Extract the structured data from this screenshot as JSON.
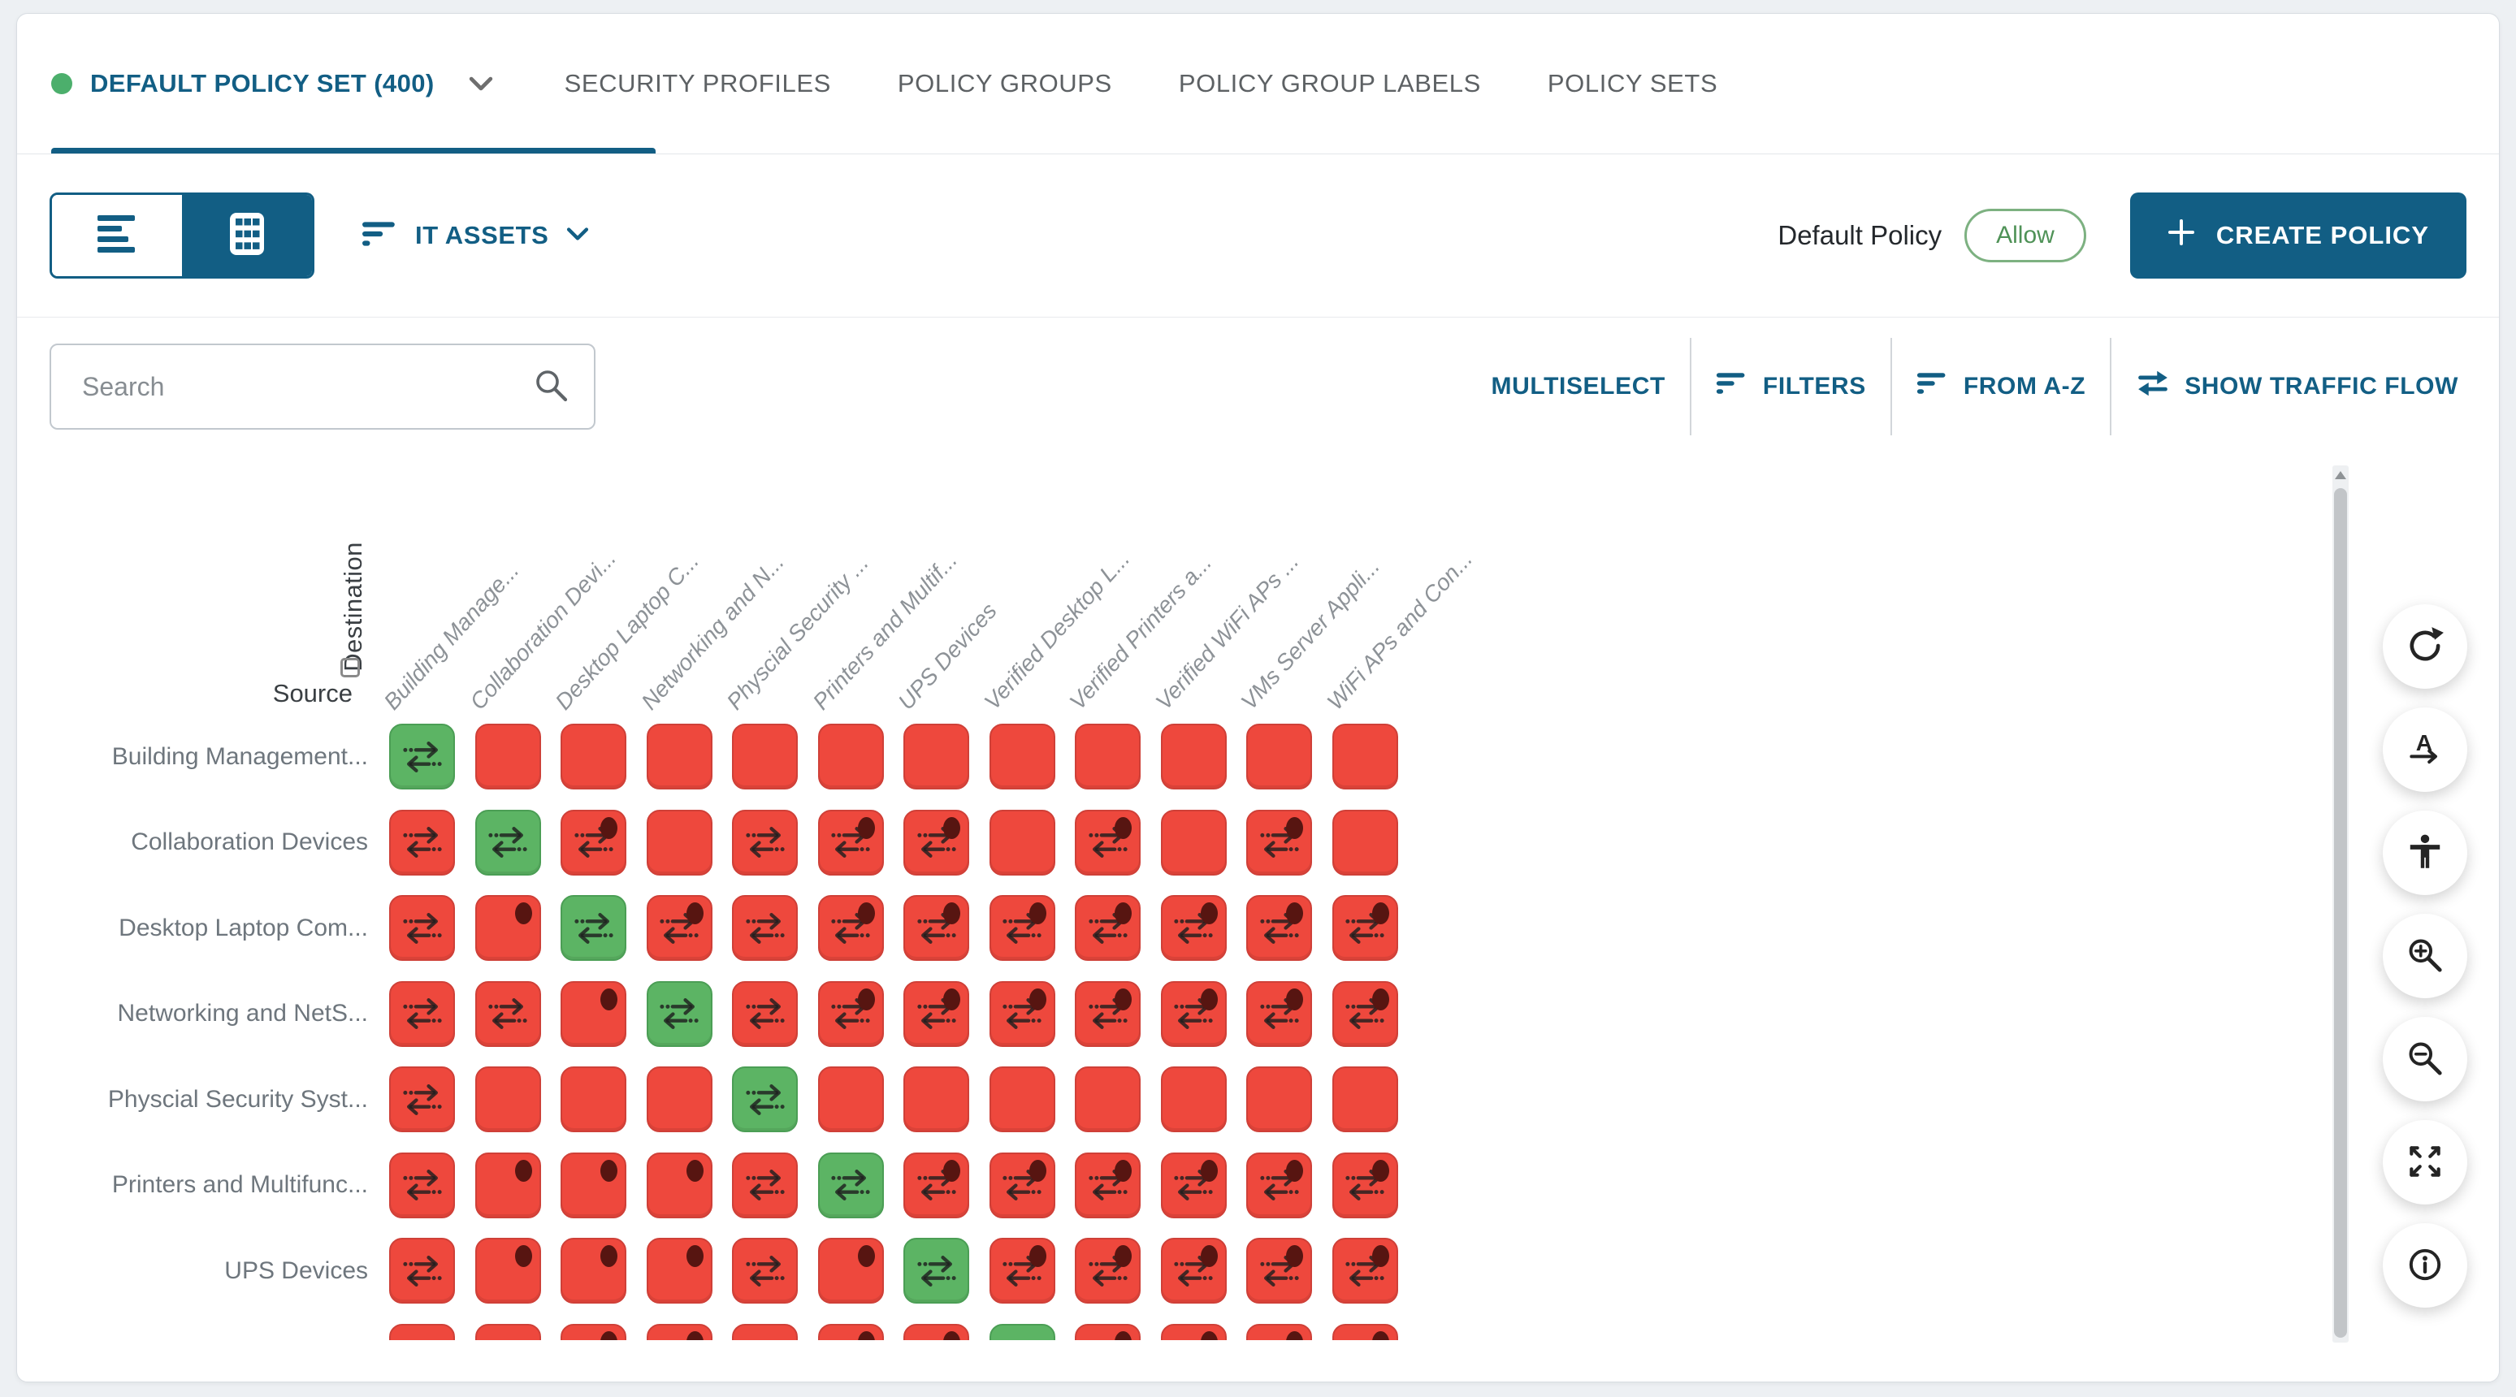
{
  "tabs": {
    "active_label": "DEFAULT POLICY SET (400)",
    "inactive": [
      "SECURITY PROFILES",
      "POLICY GROUPS",
      "POLICY GROUP LABELS",
      "POLICY SETS"
    ]
  },
  "toolbar": {
    "asset_filter_label": "IT ASSETS",
    "default_policy_label": "Default Policy",
    "default_policy_value": "Allow",
    "create_policy_label": "CREATE POLICY"
  },
  "search": {
    "placeholder": "Search",
    "value": ""
  },
  "actions": {
    "multiselect": "MULTISELECT",
    "filters": "FILTERS",
    "sort": "FROM A-Z",
    "traffic_flow": "SHOW TRAFFIC FLOW"
  },
  "matrix": {
    "axis": {
      "source": "Source",
      "destination": "Destination"
    },
    "columns": [
      "Building Manage...",
      "Collaboration Devi...",
      "Desktop Laptop C...",
      "Networking and N...",
      "Physcial Security ...",
      "Printers and Multif...",
      "UPS Devices",
      "Verified Desktop L...",
      "Verified Printers a...",
      "Verified WiFi APs ...",
      "VMs Server Appli...",
      "WiFi APs and Con..."
    ],
    "rows": [
      {
        "label": "Building Management...",
        "cells": [
          "allow-flow",
          "block",
          "block",
          "block",
          "block",
          "block",
          "block",
          "block",
          "block",
          "block",
          "block",
          "block"
        ]
      },
      {
        "label": "Collaboration Devices",
        "cells": [
          "block-flow",
          "allow-flow",
          "block-flow-dot",
          "block",
          "block-flow",
          "block-flow-dot",
          "block-flow-dot",
          "block",
          "block-flow-dot",
          "block",
          "block-flow-dot",
          "block"
        ]
      },
      {
        "label": "Desktop Laptop Com...",
        "cells": [
          "block-flow",
          "block-dot",
          "allow-flow",
          "block-flow-dot",
          "block-flow",
          "block-flow-dot",
          "block-flow-dot",
          "block-flow-dot",
          "block-flow-dot",
          "block-flow-dot",
          "block-flow-dot",
          "block-flow-dot"
        ]
      },
      {
        "label": "Networking and NetS...",
        "cells": [
          "block-flow",
          "block-flow",
          "block-dot",
          "allow-flow",
          "block-flow",
          "block-flow-dot",
          "block-flow-dot",
          "block-flow-dot",
          "block-flow-dot",
          "block-flow-dot",
          "block-flow-dot",
          "block-flow-dot"
        ]
      },
      {
        "label": "Physcial Security Syst...",
        "cells": [
          "block-flow",
          "block",
          "block",
          "block",
          "allow-flow",
          "block",
          "block",
          "block",
          "block",
          "block",
          "block",
          "block"
        ]
      },
      {
        "label": "Printers and Multifunc...",
        "cells": [
          "block-flow",
          "block-dot",
          "block-dot",
          "block-dot",
          "block-flow",
          "allow-flow",
          "block-flow-dot",
          "block-flow-dot",
          "block-flow-dot",
          "block-flow-dot",
          "block-flow-dot",
          "block-flow-dot"
        ]
      },
      {
        "label": "UPS Devices",
        "cells": [
          "block-flow",
          "block-dot",
          "block-dot",
          "block-dot",
          "block-flow",
          "block-dot",
          "allow-flow",
          "block-flow-dot",
          "block-flow-dot",
          "block-flow-dot",
          "block-flow-dot",
          "block-flow-dot"
        ]
      },
      {
        "label": "",
        "cells": [
          "block",
          "block",
          "block-dot",
          "block-dot",
          "block",
          "block-dot",
          "block-dot",
          "allow",
          "block-dot",
          "block-dot",
          "block-dot",
          "block-dot"
        ]
      }
    ],
    "colors": {
      "allow": "#5cb464",
      "block": "#ee483d",
      "dot": "#571511",
      "accent": "#125e84",
      "tab_dot": "#4caf6c"
    }
  },
  "side_controls": [
    {
      "icon": "refresh-icon"
    },
    {
      "icon": "font-size-icon"
    },
    {
      "icon": "accessibility-icon"
    },
    {
      "icon": "zoom-in-icon"
    },
    {
      "icon": "zoom-out-icon"
    },
    {
      "icon": "fullscreen-icon"
    },
    {
      "icon": "info-icon"
    }
  ]
}
